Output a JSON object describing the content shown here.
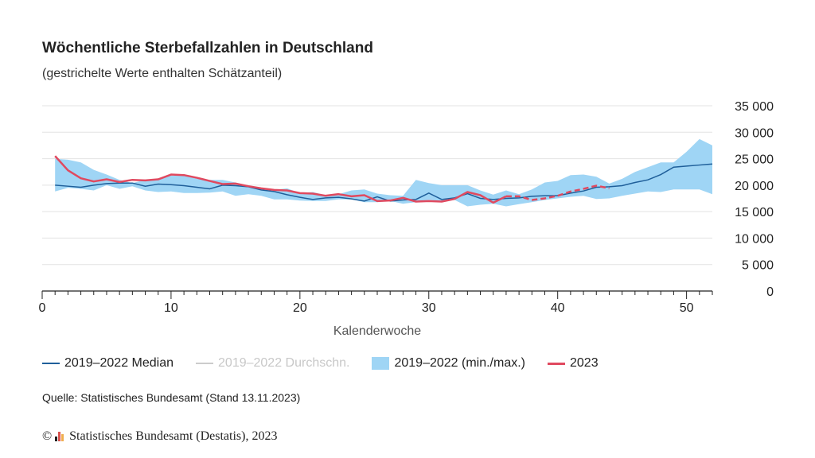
{
  "title": "Wöchentliche Sterbefallzahlen in Deutschland",
  "subtitle": "(gestrichelte Werte enthalten Schätzanteil)",
  "source": "Quelle: Statistisches Bundesamt (Stand 13.11.2023)",
  "footer": {
    "copyright_symbol": "©",
    "text": "Statistisches Bundesamt (Destatis), 2023",
    "logo_colors": [
      "#222222",
      "#d9534f",
      "#f0ad4e"
    ]
  },
  "legend": {
    "median": "2019–2022 Median",
    "mean": "2019–2022 Durchschn.",
    "range": "2019–2022 (min./max.)",
    "y2023": "2023"
  },
  "colors": {
    "median": "#1f5f9a",
    "mean": "#cccccc",
    "range": "#9fd5f5",
    "y2023": "#e0495f",
    "grid": "#e3e3e3",
    "axis": "#222222"
  },
  "chart_data": {
    "type": "line",
    "xlabel": "Kalenderwoche",
    "ylabel": "",
    "xlim": [
      0,
      52
    ],
    "ylim": [
      0,
      35000
    ],
    "x_ticks": [
      0,
      10,
      20,
      30,
      40,
      50
    ],
    "y_ticks": [
      0,
      5000,
      10000,
      15000,
      20000,
      25000,
      30000,
      35000
    ],
    "y_tick_labels": [
      "0",
      "5 000",
      "10 000",
      "15 000",
      "20 000",
      "25 000",
      "30 000",
      "35 000"
    ],
    "y_axis_position": "right",
    "grid": true,
    "legend_position": "bottom",
    "weeks": [
      1,
      2,
      3,
      4,
      5,
      6,
      7,
      8,
      9,
      10,
      11,
      12,
      13,
      14,
      15,
      16,
      17,
      18,
      19,
      20,
      21,
      22,
      23,
      24,
      25,
      26,
      27,
      28,
      29,
      30,
      31,
      32,
      33,
      34,
      35,
      36,
      37,
      38,
      39,
      40,
      41,
      42,
      43,
      44,
      45,
      46,
      47,
      48,
      49,
      50,
      51,
      52
    ],
    "series": [
      {
        "name": "2019–2022 (min./max.)",
        "kind": "band",
        "min": [
          18800,
          19500,
          19300,
          19000,
          20000,
          19300,
          19800,
          19000,
          18700,
          18800,
          18500,
          18500,
          18600,
          18800,
          18000,
          18300,
          18000,
          17300,
          17300,
          17100,
          17000,
          17000,
          17300,
          17300,
          16800,
          16800,
          17000,
          16500,
          16800,
          17200,
          17000,
          17200,
          16000,
          16300,
          16500,
          16000,
          16400,
          16800,
          17200,
          17500,
          17800,
          18000,
          17400,
          17500,
          18000,
          18400,
          18800,
          18700,
          19200,
          19200,
          19200,
          18300
        ],
        "max": [
          25000,
          24800,
          24300,
          22900,
          22000,
          21000,
          20400,
          21000,
          21000,
          21800,
          21800,
          21200,
          21000,
          21000,
          20500,
          19900,
          19500,
          19100,
          19400,
          18500,
          18700,
          18100,
          18300,
          19000,
          19200,
          18400,
          18100,
          18000,
          21000,
          20400,
          20000,
          20000,
          20000,
          19000,
          18200,
          19000,
          18300,
          19200,
          20500,
          20800,
          21900,
          22000,
          21600,
          20300,
          21200,
          22500,
          23400,
          24300,
          24300,
          26300,
          28700,
          27500
        ]
      },
      {
        "name": "2019–2022 Median",
        "kind": "line",
        "values": [
          20000,
          19800,
          19600,
          20000,
          20300,
          20400,
          20400,
          19800,
          20200,
          20100,
          19900,
          19600,
          19300,
          20000,
          19900,
          19700,
          19100,
          18800,
          18200,
          17700,
          17300,
          17600,
          17700,
          17400,
          17000,
          17800,
          17000,
          17200,
          17300,
          18500,
          17300,
          17600,
          18400,
          17500,
          17300,
          17500,
          17600,
          17900,
          18000,
          18000,
          18500,
          18900,
          19600,
          19700,
          19900,
          20500,
          21000,
          22000,
          23400,
          23600,
          23800,
          24000
        ]
      },
      {
        "name": "2023",
        "kind": "line",
        "values": [
          25500,
          22800,
          21300,
          20700,
          21100,
          20600,
          21000,
          20900,
          21100,
          22000,
          21900,
          21400,
          20800,
          20200,
          20300,
          19800,
          19400,
          19100,
          19000,
          18500,
          18400,
          18000,
          18300,
          17900,
          18100,
          17000,
          17100,
          17600,
          16900,
          17000,
          16900,
          17400,
          18700,
          18100,
          16700,
          17900,
          17900,
          17200,
          17500,
          18000,
          18800,
          19300,
          19900,
          19400
        ],
        "solid_until_week": 36,
        "dashed_from_week": 36
      }
    ]
  }
}
